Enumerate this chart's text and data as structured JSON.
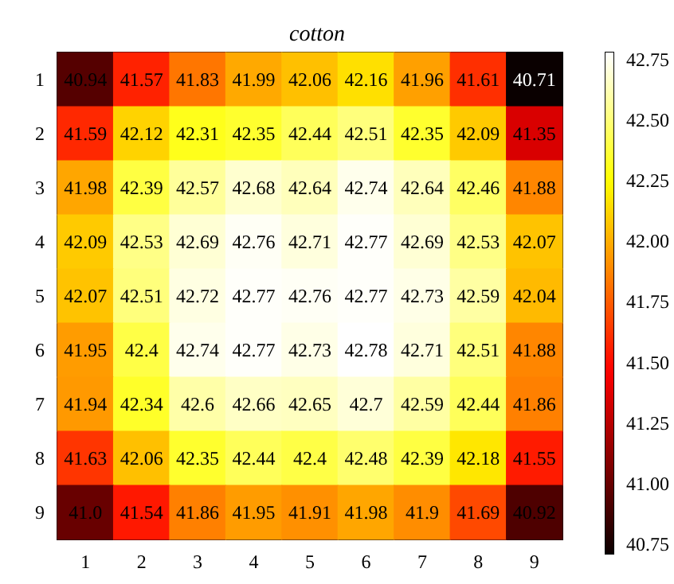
{
  "chart_data": {
    "type": "heatmap",
    "title": "cotton",
    "categories": [
      "1",
      "2",
      "3",
      "4",
      "5",
      "6",
      "7",
      "8",
      "9"
    ],
    "y_categories": [
      "1",
      "2",
      "3",
      "4",
      "5",
      "6",
      "7",
      "8",
      "9"
    ],
    "cells": [
      [
        40.94,
        41.57,
        41.83,
        41.99,
        42.06,
        42.16,
        41.96,
        41.61,
        40.71
      ],
      [
        41.59,
        42.12,
        42.31,
        42.35,
        42.44,
        42.51,
        42.35,
        42.09,
        41.35
      ],
      [
        41.98,
        42.39,
        42.57,
        42.68,
        42.64,
        42.74,
        42.64,
        42.46,
        41.88
      ],
      [
        42.09,
        42.53,
        42.69,
        42.76,
        42.71,
        42.77,
        42.69,
        42.53,
        42.07
      ],
      [
        42.07,
        42.51,
        42.72,
        42.77,
        42.76,
        42.77,
        42.73,
        42.59,
        42.04
      ],
      [
        41.95,
        42.4,
        42.74,
        42.77,
        42.73,
        42.78,
        42.71,
        42.51,
        41.88
      ],
      [
        41.94,
        42.34,
        42.6,
        42.66,
        42.65,
        42.7,
        42.59,
        42.44,
        41.86
      ],
      [
        41.63,
        42.06,
        42.35,
        42.44,
        42.4,
        42.48,
        42.39,
        42.18,
        41.55
      ],
      [
        41.0,
        41.54,
        41.86,
        41.95,
        41.91,
        41.98,
        41.9,
        41.69,
        40.92
      ]
    ],
    "cell_labels": [
      [
        "40.94",
        "41.57",
        "41.83",
        "41.99",
        "42.06",
        "42.16",
        "41.96",
        "41.61",
        "40.71"
      ],
      [
        "41.59",
        "42.12",
        "42.31",
        "42.35",
        "42.44",
        "42.51",
        "42.35",
        "42.09",
        "41.35"
      ],
      [
        "41.98",
        "42.39",
        "42.57",
        "42.68",
        "42.64",
        "42.74",
        "42.64",
        "42.46",
        "41.88"
      ],
      [
        "42.09",
        "42.53",
        "42.69",
        "42.76",
        "42.71",
        "42.77",
        "42.69",
        "42.53",
        "42.07"
      ],
      [
        "42.07",
        "42.51",
        "42.72",
        "42.77",
        "42.76",
        "42.77",
        "42.73",
        "42.59",
        "42.04"
      ],
      [
        "41.95",
        "42.4",
        "42.74",
        "42.77",
        "42.73",
        "42.78",
        "42.71",
        "42.51",
        "41.88"
      ],
      [
        "41.94",
        "42.34",
        "42.6",
        "42.66",
        "42.65",
        "42.7",
        "42.59",
        "42.44",
        "41.86"
      ],
      [
        "41.63",
        "42.06",
        "42.35",
        "42.44",
        "42.4",
        "42.48",
        "42.39",
        "42.18",
        "41.55"
      ],
      [
        "41.0",
        "41.54",
        "41.86",
        "41.95",
        "41.91",
        "41.98",
        "41.9",
        "41.69",
        "40.92"
      ]
    ],
    "cticks": [
      "40.75",
      "41.00",
      "41.25",
      "41.50",
      "41.75",
      "42.00",
      "42.25",
      "42.50",
      "42.75"
    ]
  }
}
